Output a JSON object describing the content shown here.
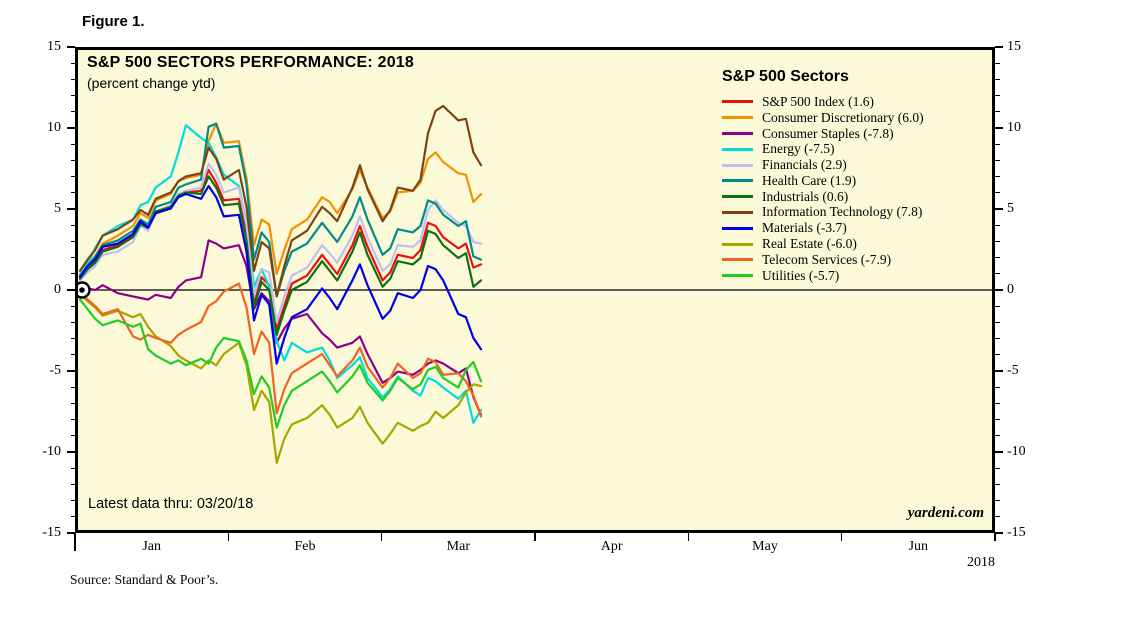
{
  "figure_label": "Figure 1.",
  "header": {
    "title": "S&P 500 SECTORS PERFORMANCE: 2018",
    "subtitle": "(percent change ytd)"
  },
  "note": "Latest data thru: 03/20/18",
  "watermark": "yardeni.com",
  "source": "Source: Standard & Poor’s.",
  "year_label": "2018",
  "colors": {
    "plot_background": "#fcf9d8",
    "frame": "#000000",
    "zero_line": "#000000"
  },
  "chart_data": {
    "type": "line",
    "title": "S&P 500 SECTORS PERFORMANCE: 2018",
    "subtitle": "(percent change ytd)",
    "legend_title": "S&P 500 Sectors",
    "legend_position": "top-right-inside",
    "latest_data_thru": "03/20/18",
    "ylabel": "percent change ytd",
    "ylim": [
      -15,
      15
    ],
    "y_major_ticks": [
      15,
      10,
      5,
      0,
      -5,
      -10,
      -15
    ],
    "y_minor_step": 1,
    "grid": false,
    "zero_line": true,
    "x_months": [
      "Jan",
      "Feb",
      "Mar",
      "Apr",
      "May",
      "Jun"
    ],
    "x_axis_span_days": 181,
    "data_start_value": 0,
    "t_trading_day_index": [
      0,
      1,
      2,
      3,
      5,
      7,
      8,
      9,
      10,
      12,
      13,
      14,
      16,
      17,
      18,
      19,
      21,
      22,
      23,
      24,
      25,
      26,
      27,
      28,
      30,
      32,
      33,
      34,
      36,
      37,
      38,
      40,
      41,
      42,
      44,
      45,
      46,
      47,
      48,
      50,
      51,
      52,
      53
    ],
    "t_max": 53,
    "series": [
      {
        "name": "S&P 500 Index",
        "final_value": 1.6,
        "legend_label": "S&P 500 Index (1.6)",
        "color": "#e81010",
        "values": [
          0.8,
          1.4,
          1.8,
          2.5,
          2.8,
          3.4,
          4.2,
          3.8,
          4.8,
          5.1,
          5.9,
          6.1,
          6.2,
          7.5,
          6.7,
          5.6,
          5.7,
          3.4,
          -0.9,
          0.8,
          0.3,
          -2.5,
          -1.0,
          0.4,
          0.9,
          2.2,
          1.6,
          1.0,
          2.8,
          4.0,
          2.7,
          0.6,
          1.1,
          2.2,
          2.0,
          2.5,
          4.2,
          4.0,
          3.3,
          2.6,
          2.9,
          1.4,
          1.6
        ]
      },
      {
        "name": "Consumer Discretionary",
        "final_value": 6.0,
        "legend_label": "Consumer Discretionary (6.0)",
        "color": "#f39000",
        "values": [
          1.0,
          1.6,
          2.1,
          2.9,
          3.4,
          4.0,
          4.8,
          4.5,
          5.6,
          6.0,
          6.8,
          7.0,
          7.2,
          9.3,
          10.4,
          9.2,
          9.3,
          7.0,
          2.8,
          4.4,
          4.1,
          1.0,
          2.5,
          3.8,
          4.4,
          5.8,
          5.5,
          4.8,
          6.3,
          7.5,
          6.4,
          4.5,
          4.9,
          6.1,
          6.2,
          6.7,
          8.2,
          8.6,
          8.0,
          7.3,
          7.2,
          5.5,
          6.0
        ]
      },
      {
        "name": "Consumer Staples",
        "final_value": -7.8,
        "legend_label": "Consumer Staples (-7.8)",
        "color": "#8b008b",
        "values": [
          -0.1,
          0.1,
          0.0,
          0.3,
          -0.2,
          -0.4,
          -0.5,
          -0.6,
          -0.3,
          -0.5,
          0.2,
          0.6,
          0.8,
          3.1,
          2.9,
          2.6,
          2.8,
          1.5,
          -1.2,
          -0.2,
          -0.7,
          -3.3,
          -2.4,
          -1.8,
          -1.5,
          -2.7,
          -3.1,
          -3.6,
          -3.3,
          -2.9,
          -4.0,
          -5.8,
          -5.5,
          -5.1,
          -5.3,
          -5.0,
          -4.6,
          -4.4,
          -4.6,
          -5.2,
          -4.9,
          -6.7,
          -7.8
        ]
      },
      {
        "name": "Energy",
        "final_value": -7.5,
        "legend_label": "Energy (-7.5)",
        "color": "#00dcdc",
        "values": [
          0.9,
          1.7,
          2.6,
          3.4,
          4.0,
          4.4,
          5.3,
          5.5,
          6.4,
          7.1,
          8.6,
          10.3,
          9.5,
          9.2,
          8.3,
          7.2,
          6.5,
          4.2,
          0.2,
          1.3,
          0.2,
          -3.2,
          -4.4,
          -3.3,
          -3.9,
          -3.6,
          -4.4,
          -5.5,
          -4.7,
          -4.2,
          -5.5,
          -6.7,
          -6.2,
          -5.4,
          -6.3,
          -6.6,
          -5.5,
          -5.7,
          -6.1,
          -6.8,
          -6.3,
          -8.3,
          -7.5
        ]
      },
      {
        "name": "Financials",
        "final_value": 2.9,
        "legend_label": "Financials (2.9)",
        "color": "#bfbff2",
        "values": [
          0.6,
          1.1,
          1.5,
          2.2,
          2.4,
          3.0,
          4.0,
          3.7,
          4.9,
          5.3,
          6.0,
          6.2,
          6.4,
          7.9,
          7.2,
          6.1,
          6.4,
          4.1,
          -0.4,
          1.3,
          1.1,
          -2.0,
          -0.4,
          0.9,
          1.4,
          2.8,
          2.3,
          1.7,
          3.4,
          4.6,
          3.3,
          1.2,
          1.6,
          2.8,
          2.7,
          3.1,
          5.0,
          5.6,
          5.0,
          4.2,
          4.0,
          3.0,
          2.9
        ]
      },
      {
        "name": "Health Care",
        "final_value": 1.9,
        "legend_label": "Health Care (1.9)",
        "color": "#008b8b",
        "values": [
          0.9,
          1.5,
          2.1,
          2.8,
          3.1,
          3.7,
          4.4,
          4.1,
          5.2,
          5.5,
          6.4,
          6.6,
          6.9,
          10.2,
          10.4,
          8.9,
          9.0,
          6.6,
          1.9,
          3.6,
          3.0,
          -0.4,
          1.2,
          2.4,
          2.9,
          4.2,
          3.6,
          3.0,
          4.6,
          5.8,
          4.4,
          2.2,
          2.6,
          3.8,
          3.6,
          4.0,
          5.6,
          5.4,
          4.7,
          4.0,
          4.3,
          2.1,
          1.9
        ]
      },
      {
        "name": "Industrials",
        "final_value": 0.6,
        "legend_label": "Industrials (0.6)",
        "color": "#0e700e",
        "values": [
          0.7,
          1.3,
          1.7,
          2.4,
          2.7,
          3.3,
          4.1,
          3.9,
          4.9,
          5.2,
          5.9,
          6.1,
          6.0,
          7.1,
          6.4,
          5.3,
          5.4,
          3.1,
          -1.1,
          0.5,
          0.0,
          -2.8,
          -1.3,
          0.0,
          0.5,
          1.8,
          1.2,
          0.6,
          2.4,
          3.6,
          2.2,
          0.2,
          0.7,
          1.8,
          1.6,
          2.0,
          3.7,
          3.5,
          2.8,
          2.0,
          2.3,
          0.2,
          0.6
        ]
      },
      {
        "name": "Information Technology",
        "final_value": 7.8,
        "legend_label": "Information Technology (7.8)",
        "color": "#7b4513",
        "values": [
          1.2,
          1.9,
          2.5,
          3.4,
          3.8,
          4.4,
          5.0,
          4.7,
          5.7,
          6.1,
          6.8,
          7.1,
          7.3,
          8.9,
          8.2,
          6.9,
          7.5,
          5.2,
          1.2,
          3.0,
          2.6,
          -0.4,
          1.5,
          3.1,
          3.7,
          5.2,
          4.8,
          4.3,
          6.4,
          7.8,
          6.3,
          4.3,
          5.0,
          6.4,
          6.2,
          6.9,
          9.8,
          11.2,
          11.5,
          10.6,
          10.7,
          8.6,
          7.8
        ]
      },
      {
        "name": "Materials",
        "final_value": -3.7,
        "legend_label": "Materials (-3.7)",
        "color": "#0000e6",
        "values": [
          0.8,
          1.5,
          1.9,
          2.7,
          2.9,
          3.5,
          4.3,
          3.9,
          4.8,
          5.1,
          5.8,
          6.0,
          5.7,
          6.5,
          5.8,
          4.6,
          4.7,
          2.4,
          -1.9,
          -0.3,
          -0.9,
          -4.6,
          -3.0,
          -1.7,
          -1.2,
          0.1,
          -0.5,
          -1.2,
          0.6,
          1.6,
          0.3,
          -1.8,
          -1.3,
          -0.2,
          -0.5,
          0.0,
          1.5,
          1.3,
          0.6,
          -1.5,
          -1.7,
          -3.0,
          -3.7
        ]
      },
      {
        "name": "Real Estate",
        "final_value": -6.0,
        "legend_label": "Real Estate (-6.0)",
        "color": "#a8a400",
        "values": [
          -0.3,
          -0.7,
          -1.1,
          -1.6,
          -1.3,
          -1.7,
          -1.5,
          -2.3,
          -2.9,
          -3.5,
          -4.1,
          -4.4,
          -4.9,
          -4.4,
          -4.7,
          -4.0,
          -3.3,
          -4.7,
          -7.5,
          -6.3,
          -7.0,
          -10.8,
          -9.3,
          -8.4,
          -8.0,
          -7.2,
          -7.8,
          -8.6,
          -8.0,
          -7.3,
          -8.3,
          -9.6,
          -9.0,
          -8.3,
          -8.8,
          -8.5,
          -8.3,
          -7.6,
          -8.0,
          -7.2,
          -6.4,
          -5.9,
          -6.0
        ]
      },
      {
        "name": "Telecom Services",
        "final_value": -7.9,
        "legend_label": "Telecom Services (-7.9)",
        "color": "#ee6420",
        "values": [
          -0.2,
          -0.6,
          -1.0,
          -1.5,
          -1.2,
          -2.9,
          -3.1,
          -2.8,
          -3.0,
          -3.3,
          -2.8,
          -2.5,
          -2.0,
          -1.0,
          -0.7,
          -0.1,
          0.4,
          -1.1,
          -4.0,
          -2.6,
          -3.3,
          -7.7,
          -6.2,
          -5.2,
          -4.6,
          -4.0,
          -4.7,
          -5.4,
          -4.4,
          -3.6,
          -4.8,
          -6.1,
          -5.5,
          -4.6,
          -5.5,
          -5.2,
          -4.3,
          -4.5,
          -5.3,
          -5.2,
          -5.7,
          -6.6,
          -7.9
        ]
      },
      {
        "name": "Utilities",
        "final_value": -5.7,
        "legend_label": "Utilities (-5.7)",
        "color": "#22cc22",
        "values": [
          -0.6,
          -1.2,
          -1.8,
          -2.2,
          -1.9,
          -2.3,
          -2.1,
          -3.7,
          -4.1,
          -4.6,
          -4.4,
          -4.7,
          -4.3,
          -4.6,
          -3.6,
          -3.0,
          -3.2,
          -4.4,
          -6.5,
          -5.4,
          -6.1,
          -8.6,
          -7.2,
          -6.3,
          -5.7,
          -5.1,
          -5.7,
          -6.4,
          -5.4,
          -4.7,
          -5.8,
          -6.9,
          -6.3,
          -5.5,
          -6.2,
          -5.9,
          -5.0,
          -4.8,
          -5.5,
          -6.1,
          -5.0,
          -4.5,
          -5.7
        ]
      }
    ]
  }
}
